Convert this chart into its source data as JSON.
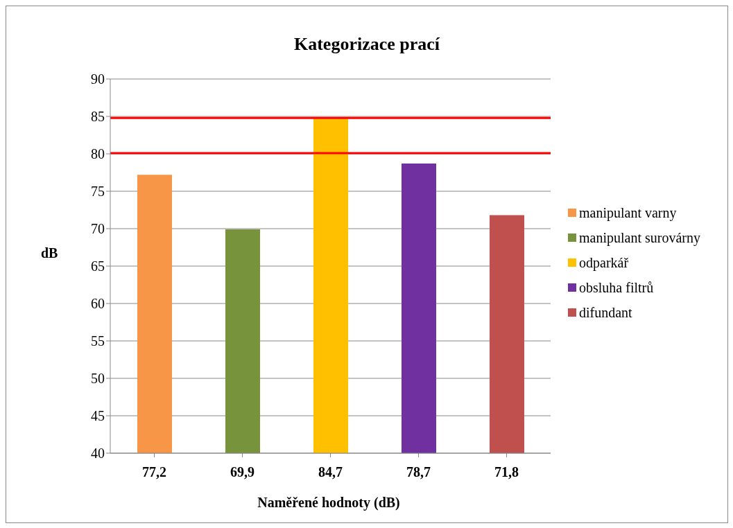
{
  "chart_data": {
    "type": "bar",
    "title": "Kategorizace  prací",
    "xlabel": "Naměřené hodnoty (dB)",
    "ylabel": "dB",
    "categories": [
      "77,2",
      "69,9",
      "84,7",
      "78,7",
      "71,8"
    ],
    "series": [
      {
        "name": "manipulant varny",
        "color": "#f79646",
        "values": [
          77.2,
          null,
          null,
          null,
          null
        ]
      },
      {
        "name": "manipulant surovárny",
        "color": "#77933c",
        "values": [
          null,
          69.9,
          null,
          null,
          null
        ]
      },
      {
        "name": "odparkář",
        "color": "#ffc000",
        "values": [
          null,
          null,
          84.7,
          null,
          null
        ]
      },
      {
        "name": "obsluha filtrů",
        "color": "#7030a0",
        "values": [
          null,
          null,
          null,
          78.7,
          null
        ]
      },
      {
        "name": "difundant",
        "color": "#c0504d",
        "values": [
          null,
          null,
          null,
          null,
          71.8
        ]
      }
    ],
    "ylim": [
      40,
      90
    ],
    "yticks": [
      40,
      45,
      50,
      55,
      60,
      65,
      70,
      75,
      80,
      85,
      90
    ],
    "grid": "y",
    "legend": "right",
    "ref_lines": [
      {
        "axis": "y",
        "value": 84.8,
        "color": "#ff0000"
      },
      {
        "axis": "y",
        "value": 80.1,
        "color": "#ff0000"
      }
    ]
  }
}
